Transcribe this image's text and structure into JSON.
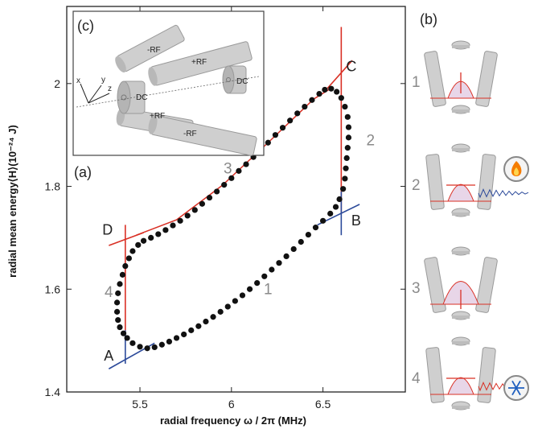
{
  "figure": {
    "panel_a_label": "(a)",
    "panel_b_label": "(b)",
    "panel_c_label": "(c)",
    "xlabel": "radial frequency ω / 2π (MHz)",
    "ylabel": "radial mean energy⟨H⟩(10⁻²⁴ J)"
  },
  "corners": [
    {
      "label": "A",
      "x": 5.4,
      "y": 1.455
    },
    {
      "label": "B",
      "x": 6.62,
      "y": 1.73
    },
    {
      "label": "C",
      "x": 6.6,
      "y": 2.005
    },
    {
      "label": "D",
      "x": 5.4,
      "y": 1.7
    }
  ],
  "stroke_labels": [
    {
      "label": "1",
      "x": 6.2,
      "y": 1.59
    },
    {
      "label": "2",
      "x": 6.76,
      "y": 1.88
    },
    {
      "label": "3",
      "x": 5.98,
      "y": 1.825
    },
    {
      "label": "4",
      "x": 5.33,
      "y": 1.585
    }
  ],
  "chart_data": {
    "type": "scatter",
    "xlim": [
      5.1,
      6.95
    ],
    "ylim": [
      1.4,
      2.15
    ],
    "xticks": [
      "5.5",
      "6",
      "6.5"
    ],
    "xtick_values": [
      5.5,
      6.0,
      6.5
    ],
    "yticks": [
      "1.4",
      "1.6",
      "1.8",
      "2"
    ],
    "ytick_values": [
      1.4,
      1.6,
      1.8,
      2.0
    ],
    "grid": false,
    "cycle_points": [
      {
        "x": 5.43,
        "y": 1.505
      },
      {
        "x": 5.46,
        "y": 1.495
      },
      {
        "x": 5.5,
        "y": 1.488
      },
      {
        "x": 5.54,
        "y": 1.485
      },
      {
        "x": 5.58,
        "y": 1.487
      },
      {
        "x": 5.62,
        "y": 1.492
      },
      {
        "x": 5.66,
        "y": 1.498
      },
      {
        "x": 5.7,
        "y": 1.505
      },
      {
        "x": 5.74,
        "y": 1.512
      },
      {
        "x": 5.78,
        "y": 1.52
      },
      {
        "x": 5.82,
        "y": 1.528
      },
      {
        "x": 5.86,
        "y": 1.537
      },
      {
        "x": 5.9,
        "y": 1.546
      },
      {
        "x": 5.94,
        "y": 1.556
      },
      {
        "x": 5.98,
        "y": 1.566
      },
      {
        "x": 6.02,
        "y": 1.577
      },
      {
        "x": 6.06,
        "y": 1.588
      },
      {
        "x": 6.1,
        "y": 1.6
      },
      {
        "x": 6.14,
        "y": 1.612
      },
      {
        "x": 6.18,
        "y": 1.625
      },
      {
        "x": 6.22,
        "y": 1.638
      },
      {
        "x": 6.26,
        "y": 1.651
      },
      {
        "x": 6.3,
        "y": 1.664
      },
      {
        "x": 6.34,
        "y": 1.678
      },
      {
        "x": 6.38,
        "y": 1.692
      },
      {
        "x": 6.42,
        "y": 1.706
      },
      {
        "x": 6.46,
        "y": 1.72
      },
      {
        "x": 6.5,
        "y": 1.733
      },
      {
        "x": 6.54,
        "y": 1.747
      },
      {
        "x": 6.57,
        "y": 1.76
      },
      {
        "x": 6.59,
        "y": 1.775
      },
      {
        "x": 6.61,
        "y": 1.795
      },
      {
        "x": 6.62,
        "y": 1.815
      },
      {
        "x": 6.625,
        "y": 1.835
      },
      {
        "x": 6.63,
        "y": 1.855
      },
      {
        "x": 6.635,
        "y": 1.875
      },
      {
        "x": 6.64,
        "y": 1.895
      },
      {
        "x": 6.64,
        "y": 1.915
      },
      {
        "x": 6.635,
        "y": 1.935
      },
      {
        "x": 6.62,
        "y": 1.955
      },
      {
        "x": 6.6,
        "y": 1.972
      },
      {
        "x": 6.575,
        "y": 1.984
      },
      {
        "x": 6.545,
        "y": 1.99
      },
      {
        "x": 6.51,
        "y": 1.988
      },
      {
        "x": 6.48,
        "y": 1.98
      },
      {
        "x": 6.44,
        "y": 1.968
      },
      {
        "x": 6.4,
        "y": 1.955
      },
      {
        "x": 6.36,
        "y": 1.942
      },
      {
        "x": 6.32,
        "y": 1.928
      },
      {
        "x": 6.28,
        "y": 1.914
      },
      {
        "x": 6.24,
        "y": 1.9
      },
      {
        "x": 6.2,
        "y": 1.885
      },
      {
        "x": 6.16,
        "y": 1.871
      },
      {
        "x": 6.12,
        "y": 1.857
      },
      {
        "x": 6.08,
        "y": 1.843
      },
      {
        "x": 6.04,
        "y": 1.83
      },
      {
        "x": 6.0,
        "y": 1.816
      },
      {
        "x": 5.96,
        "y": 1.803
      },
      {
        "x": 5.92,
        "y": 1.79
      },
      {
        "x": 5.88,
        "y": 1.778
      },
      {
        "x": 5.84,
        "y": 1.766
      },
      {
        "x": 5.8,
        "y": 1.754
      },
      {
        "x": 5.76,
        "y": 1.743
      },
      {
        "x": 5.72,
        "y": 1.733
      },
      {
        "x": 5.68,
        "y": 1.724
      },
      {
        "x": 5.64,
        "y": 1.715
      },
      {
        "x": 5.6,
        "y": 1.707
      },
      {
        "x": 5.56,
        "y": 1.7
      },
      {
        "x": 5.52,
        "y": 1.694
      },
      {
        "x": 5.49,
        "y": 1.686
      },
      {
        "x": 5.46,
        "y": 1.674
      },
      {
        "x": 5.44,
        "y": 1.66
      },
      {
        "x": 5.42,
        "y": 1.645
      },
      {
        "x": 5.405,
        "y": 1.628
      },
      {
        "x": 5.39,
        "y": 1.61
      },
      {
        "x": 5.38,
        "y": 1.592
      },
      {
        "x": 5.375,
        "y": 1.574
      },
      {
        "x": 5.375,
        "y": 1.556
      },
      {
        "x": 5.38,
        "y": 1.54
      },
      {
        "x": 5.39,
        "y": 1.526
      },
      {
        "x": 5.41,
        "y": 1.514
      }
    ],
    "fit_curve_3": [
      {
        "x": 5.48,
        "y": 1.705
      },
      {
        "x": 5.7,
        "y": 1.735
      },
      {
        "x": 5.95,
        "y": 1.802
      },
      {
        "x": 6.2,
        "y": 1.885
      },
      {
        "x": 6.45,
        "y": 1.97
      },
      {
        "x": 6.55,
        "y": 1.992
      }
    ],
    "guide_lines": [
      {
        "color": "#d93025",
        "x1": 6.6,
        "y1": 1.75,
        "x2": 6.6,
        "y2": 2.11
      },
      {
        "color": "#d93025",
        "x1": 6.51,
        "y1": 1.985,
        "x2": 6.66,
        "y2": 2.045
      },
      {
        "color": "#d93025",
        "x1": 5.42,
        "y1": 1.52,
        "x2": 5.42,
        "y2": 1.725
      },
      {
        "color": "#d93025",
        "x1": 5.33,
        "y1": 1.685,
        "x2": 5.52,
        "y2": 1.71
      },
      {
        "color": "#2c4a9a",
        "x1": 6.6,
        "y1": 1.705,
        "x2": 6.6,
        "y2": 1.79
      },
      {
        "color": "#2c4a9a",
        "x1": 6.47,
        "y1": 1.725,
        "x2": 6.7,
        "y2": 1.765
      },
      {
        "color": "#2c4a9a",
        "x1": 5.42,
        "y1": 1.455,
        "x2": 5.42,
        "y2": 1.52
      },
      {
        "color": "#2c4a9a",
        "x1": 5.33,
        "y1": 1.445,
        "x2": 5.58,
        "y2": 1.495
      }
    ]
  },
  "inset": {
    "labels": [
      "-RF",
      "+RF",
      "DC",
      "DC",
      "+RF",
      "-RF"
    ],
    "axes": [
      "x",
      "y",
      "z"
    ]
  },
  "panel_b": {
    "numbers": [
      "1",
      "2",
      "3",
      "4"
    ],
    "icons": [
      "flame-icon",
      "snowflake-icon"
    ]
  },
  "colors": {
    "points": "#111111",
    "fit": "#d93025",
    "blue": "#2c4a9a",
    "gray_num": "#8a8a8a",
    "electrode": "#cfcfcf"
  }
}
